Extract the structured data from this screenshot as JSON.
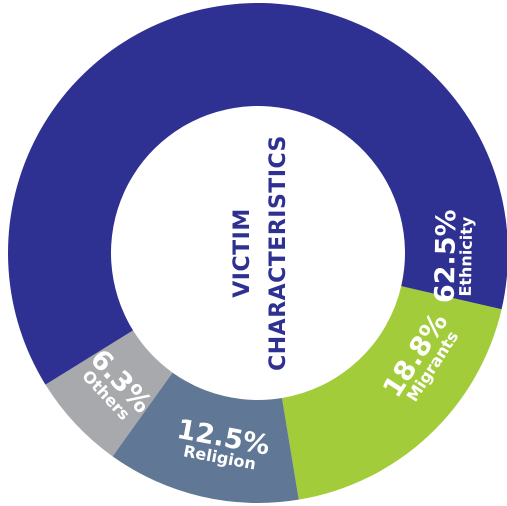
{
  "chart_data": {
    "type": "pie",
    "variant": "donut",
    "center_label": [
      "VICTIM",
      "CHARACTERISTICS"
    ],
    "slices": [
      {
        "name": "Migrants",
        "value": 18.8,
        "label": "18.8%",
        "color": "#a3cc3a"
      },
      {
        "name": "Religion",
        "value": 12.5,
        "label": "12.5%",
        "color": "#607795"
      },
      {
        "name": "Others",
        "value": 6.3,
        "label": "6.3%",
        "color": "#a7a9ac"
      },
      {
        "name": "Ethnicity",
        "value": 62.5,
        "label": "62.5%",
        "color": "#2e3192"
      }
    ]
  }
}
